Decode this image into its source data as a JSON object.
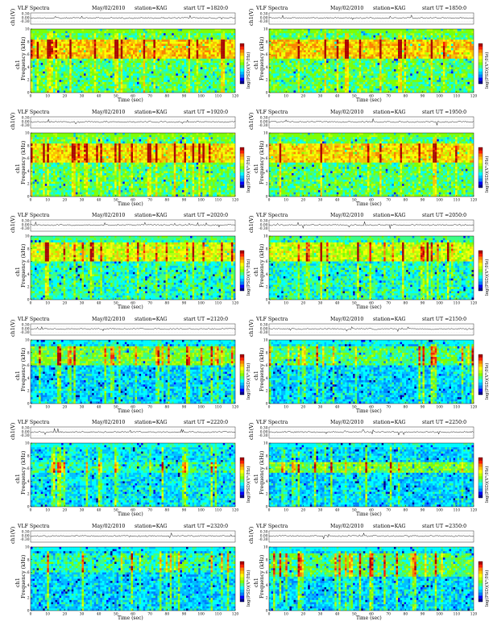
{
  "chart_data": {
    "type": "heatmap",
    "instrument_label": "VLF Spectra",
    "date_label": "May/02/2010",
    "station_label": "station=KAG",
    "time_label_prefix": "start UT =",
    "top_trace_ylabel": "ch1(V)",
    "top_trace_ticks": [
      "0.30",
      "0.00",
      "-0.30"
    ],
    "spectrogram_ylabel_prefix": "ch1",
    "spectrogram_ylabel": "Frequency (kHz)",
    "xlabel": "Time (sec)",
    "colorbar_label": "log(PSD)(V²/Hz)",
    "freq_ticks": [
      0,
      2,
      4,
      6,
      8,
      10
    ],
    "freq_range_khz": [
      0,
      10
    ],
    "time_range_sec": [
      0,
      120
    ],
    "time_ticks": [
      0,
      10,
      20,
      30,
      40,
      50,
      60,
      70,
      80,
      90,
      100,
      110,
      120
    ],
    "colormap": [
      "#00008b",
      "#0000ff",
      "#0080ff",
      "#00c0ff",
      "#00ffff",
      "#40ff80",
      "#80ff00",
      "#c0ff00",
      "#ffff00",
      "#ffc000",
      "#ff8000",
      "#ff2000",
      "#b00000"
    ],
    "panels": [
      {
        "start_ut": "1820:0",
        "bg_level": 0.45,
        "band_level": 0.72,
        "band_low_khz": 5.5,
        "band_high_khz": 8.5
      },
      {
        "start_ut": "1850:0",
        "bg_level": 0.45,
        "band_level": 0.72,
        "band_low_khz": 5.5,
        "band_high_khz": 8.5
      },
      {
        "start_ut": "1920:0",
        "bg_level": 0.45,
        "band_level": 0.7,
        "band_low_khz": 5.5,
        "band_high_khz": 8.5
      },
      {
        "start_ut": "1950:0",
        "bg_level": 0.45,
        "band_level": 0.7,
        "band_low_khz": 5.5,
        "band_high_khz": 8.5
      },
      {
        "start_ut": "2020:0",
        "bg_level": 0.38,
        "band_level": 0.62,
        "band_low_khz": 6.0,
        "band_high_khz": 9.0
      },
      {
        "start_ut": "2050:0",
        "bg_level": 0.38,
        "band_level": 0.6,
        "band_low_khz": 6.0,
        "band_high_khz": 9.0
      },
      {
        "start_ut": "2120:0",
        "bg_level": 0.3,
        "band_level": 0.5,
        "band_low_khz": 6.0,
        "band_high_khz": 9.0
      },
      {
        "start_ut": "2150:0",
        "bg_level": 0.3,
        "band_level": 0.45,
        "band_low_khz": 6.0,
        "band_high_khz": 9.0
      },
      {
        "start_ut": "2220:0",
        "bg_level": 0.32,
        "band_level": 0.4,
        "band_low_khz": 5.5,
        "band_high_khz": 7.0
      },
      {
        "start_ut": "2250:0",
        "bg_level": 0.3,
        "band_level": 0.5,
        "band_low_khz": 5.5,
        "band_high_khz": 7.0
      },
      {
        "start_ut": "2320:0",
        "bg_level": 0.3,
        "band_level": 0.4,
        "band_low_khz": 6.0,
        "band_high_khz": 9.0
      },
      {
        "start_ut": "2350:0",
        "bg_level": 0.3,
        "band_level": 0.45,
        "band_low_khz": 5.5,
        "band_high_khz": 9.0
      }
    ]
  }
}
